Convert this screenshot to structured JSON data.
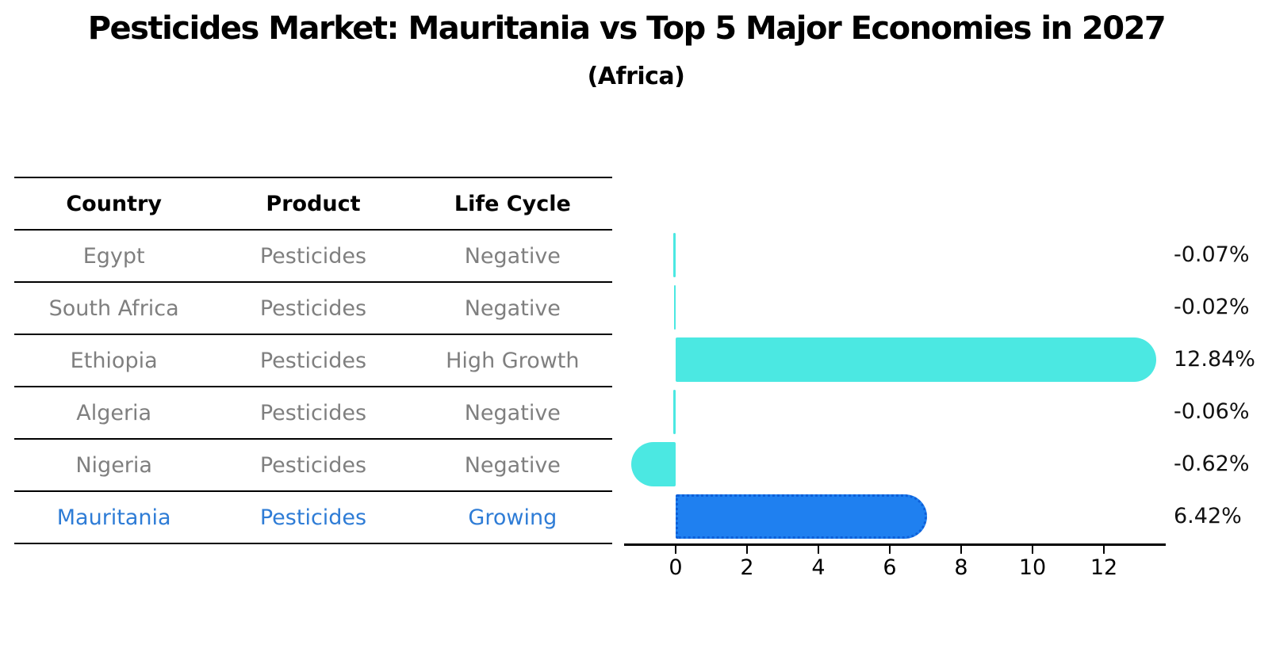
{
  "title": "Pesticides Market: Mauritania vs Top 5 Major Economies in 2027",
  "subtitle": "(Africa)",
  "table": {
    "headers": [
      "Country",
      "Product",
      "Life Cycle"
    ],
    "rows": [
      {
        "country": "Egypt",
        "product": "Pesticides",
        "life_cycle": "Negative",
        "highlight": false
      },
      {
        "country": "South Africa",
        "product": "Pesticides",
        "life_cycle": "Negative",
        "highlight": false
      },
      {
        "country": "Ethiopia",
        "product": "Pesticides",
        "life_cycle": "High Growth",
        "highlight": false
      },
      {
        "country": "Algeria",
        "product": "Pesticides",
        "life_cycle": "Negative",
        "highlight": false
      },
      {
        "country": "Nigeria",
        "product": "Pesticides",
        "life_cycle": "Negative",
        "highlight": false
      },
      {
        "country": "Mauritania",
        "product": "Pesticides",
        "life_cycle": "Growing",
        "highlight": true
      }
    ]
  },
  "chart_data": {
    "type": "bar",
    "orientation": "horizontal",
    "categories": [
      "Egypt",
      "South Africa",
      "Ethiopia",
      "Algeria",
      "Nigeria",
      "Mauritania"
    ],
    "values": [
      -0.07,
      -0.02,
      12.84,
      -0.06,
      -0.62,
      6.42
    ],
    "value_labels": [
      "-0.07%",
      "-0.02%",
      "12.84%",
      "-0.06%",
      "-0.62%",
      "6.42%"
    ],
    "x_ticks": [
      0,
      2,
      4,
      6,
      8,
      10,
      12
    ],
    "xlim": [
      -1.45,
      13.75
    ],
    "grid": false,
    "legend": "none",
    "highlight_index": 5,
    "colors": {
      "bar": "#4be8e2",
      "highlight_bar": "#1f80f0",
      "highlight_border": "#0e5fd8",
      "axis": "#000000",
      "value_label": "#111111",
      "row_text": "#7f7f7f",
      "highlight_text": "#2e7cd6",
      "header_text": "#000000"
    }
  }
}
